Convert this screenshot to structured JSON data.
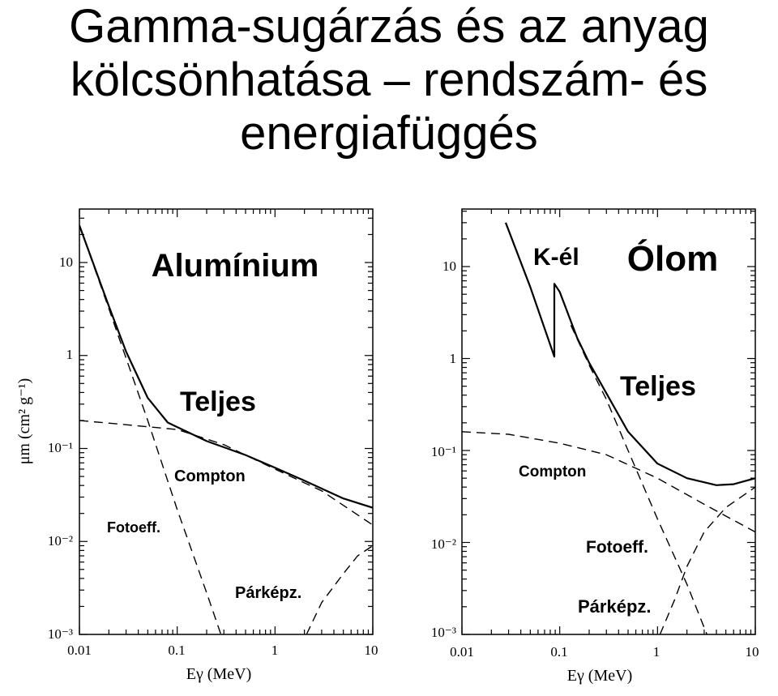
{
  "title": {
    "line1": "Gamma-sugárzás és az anyag",
    "line2": "kölcsönhatása – rendszám- és",
    "line3": "energiafüggés"
  },
  "colors": {
    "text": "#000000",
    "background": "#ffffff"
  },
  "chart_data": [
    {
      "type": "line",
      "title": "Alumínium",
      "xlabel": "Eγ (MeV)",
      "ylabel": "μm (cm² g⁻¹)",
      "xscale": "log",
      "yscale": "log",
      "xlim": [
        0.01,
        10
      ],
      "ylim": [
        0.001,
        30
      ],
      "xticks": [
        "0.01",
        "0.1",
        "1",
        "10"
      ],
      "yticks": [
        "10",
        "1",
        "10⁻¹",
        "10⁻²",
        "10⁻³"
      ],
      "series": [
        {
          "name": "Teljes",
          "style": "solid",
          "x": [
            0.01,
            0.02,
            0.03,
            0.05,
            0.08,
            0.1,
            0.2,
            0.5,
            1,
            2,
            5,
            10
          ],
          "y": [
            25,
            3.4,
            1.1,
            0.35,
            0.19,
            0.17,
            0.12,
            0.085,
            0.062,
            0.045,
            0.029,
            0.023
          ]
        },
        {
          "name": "Compton",
          "style": "dashed",
          "x": [
            0.01,
            0.03,
            0.1,
            0.3,
            1,
            3,
            10
          ],
          "y": [
            0.2,
            0.18,
            0.16,
            0.11,
            0.06,
            0.035,
            0.015
          ]
        },
        {
          "name": "Fotoeff.",
          "style": "dashed",
          "x": [
            0.01,
            0.02,
            0.05,
            0.1,
            0.2,
            0.28
          ],
          "y": [
            25,
            3.2,
            0.2,
            0.022,
            0.0028,
            0.001
          ]
        },
        {
          "name": "Párképz.",
          "style": "dashed",
          "x": [
            2.1,
            3,
            5,
            7,
            10
          ],
          "y": [
            0.001,
            0.0022,
            0.0045,
            0.007,
            0.009
          ]
        }
      ],
      "annotations": [
        "Teljes",
        "Compton",
        "Fotoeff.",
        "Párképz."
      ]
    },
    {
      "type": "line",
      "title": "Ólom",
      "xlabel": "Eγ (MeV)",
      "xscale": "log",
      "yscale": "log",
      "xlim": [
        0.01,
        10
      ],
      "ylim": [
        0.001,
        30
      ],
      "xticks": [
        "0.01",
        "0.1",
        "1",
        "10"
      ],
      "yticks": [
        "10",
        "1",
        "10⁻¹",
        "10⁻²",
        "10⁻³"
      ],
      "series": [
        {
          "name": "Teljes",
          "style": "solid",
          "x": [
            0.028,
            0.05,
            0.088,
            0.088,
            0.1,
            0.15,
            0.2,
            0.3,
            0.5,
            1,
            2,
            4,
            6,
            10
          ],
          "y": [
            30,
            6,
            1.05,
            6.5,
            5.3,
            1.7,
            0.9,
            0.42,
            0.16,
            0.072,
            0.05,
            0.042,
            0.043,
            0.05
          ]
        },
        {
          "name": "Compton",
          "style": "dashed",
          "x": [
            0.01,
            0.03,
            0.1,
            0.3,
            1,
            3,
            10
          ],
          "y": [
            0.16,
            0.15,
            0.12,
            0.09,
            0.05,
            0.026,
            0.013
          ]
        },
        {
          "name": "Fotoeff.",
          "style": "dashed",
          "x": [
            0.13,
            0.2,
            0.3,
            0.5,
            1,
            2,
            3.2
          ],
          "y": [
            2.3,
            0.85,
            0.36,
            0.1,
            0.018,
            0.0035,
            0.001
          ]
        },
        {
          "name": "Párképz.",
          "style": "dashed",
          "x": [
            1.06,
            1.5,
            2,
            3,
            5,
            10
          ],
          "y": [
            0.001,
            0.0024,
            0.0055,
            0.013,
            0.024,
            0.04
          ]
        }
      ],
      "annotations": [
        "K-él",
        "Teljes",
        "Compton",
        "Fotoeff.",
        "Párképz."
      ]
    }
  ]
}
